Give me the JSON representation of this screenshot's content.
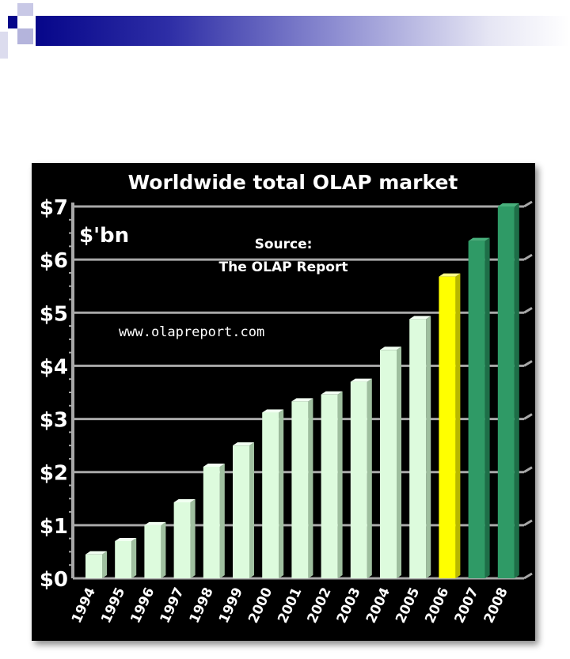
{
  "colors": {
    "header_dark": "#06068a",
    "header_light": "#9a9ad6",
    "frame_bg": "#000000",
    "grid": "#a8a8a8",
    "bar_actual": "#ddfbdd",
    "bar_highlight": "#ffff00",
    "bar_forecast": "#2f9a66",
    "text": "#ffffff"
  },
  "chart_data": {
    "type": "bar",
    "title": "Worldwide total OLAP market",
    "unit_label": "$'bn",
    "source_label": "Source:",
    "source_name": "The OLAP Report",
    "url": "www.olapreport.com",
    "ylim": [
      0,
      7
    ],
    "y_ticks": [
      "$0",
      "$1",
      "$2",
      "$3",
      "$4",
      "$5",
      "$6",
      "$7"
    ],
    "grid": true,
    "categories": [
      "1994",
      "1995",
      "1996",
      "1997",
      "1998",
      "1999",
      "2000",
      "2001",
      "2002",
      "2003",
      "2004",
      "2005",
      "2006",
      "2007",
      "2008"
    ],
    "values": [
      0.45,
      0.7,
      1.0,
      1.43,
      2.1,
      2.5,
      3.12,
      3.33,
      3.46,
      3.7,
      4.3,
      4.88,
      5.68,
      6.35,
      7.0
    ],
    "bar_styles": [
      "actual",
      "actual",
      "actual",
      "actual",
      "actual",
      "actual",
      "actual",
      "actual",
      "actual",
      "actual",
      "actual",
      "actual",
      "highlight",
      "forecast",
      "forecast"
    ]
  }
}
